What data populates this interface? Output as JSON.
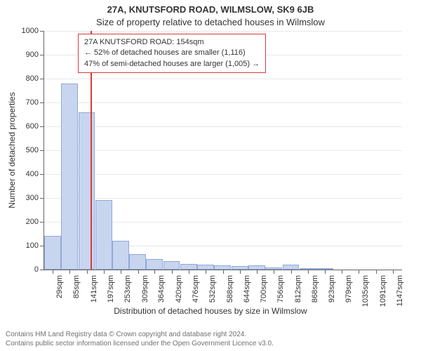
{
  "title": "27A, KNUTSFORD ROAD, WILMSLOW, SK9 6JB",
  "subtitle": "Size of property relative to detached houses in Wilmslow",
  "ylabel": "Number of detached properties",
  "xlabel": "Distribution of detached houses by size in Wilmslow",
  "chart": {
    "type": "histogram",
    "background_color": "#ffffff",
    "grid_color": "#e8e8e8",
    "axis_color": "#666666",
    "bar_fill": "#c8d5ef",
    "bar_border": "#8fa8d8",
    "ylim": [
      0,
      1000
    ],
    "ytick_step": 100,
    "marker": {
      "x_sqm": 154,
      "color": "#d93a3a"
    },
    "annotation": {
      "border_color": "#d93a3a",
      "lines": [
        "27A KNUTSFORD ROAD: 154sqm",
        "← 52% of detached houses are smaller (1,116)",
        "47% of semi-detached houses are larger (1,005) →"
      ]
    },
    "xtick_sqm": [
      29,
      85,
      141,
      197,
      253,
      309,
      364,
      420,
      476,
      532,
      588,
      644,
      700,
      756,
      812,
      868,
      923,
      979,
      1035,
      1091,
      1147
    ],
    "bars": [
      {
        "x_sqm": 29,
        "count": 140
      },
      {
        "x_sqm": 85,
        "count": 780
      },
      {
        "x_sqm": 141,
        "count": 660
      },
      {
        "x_sqm": 197,
        "count": 290
      },
      {
        "x_sqm": 253,
        "count": 120
      },
      {
        "x_sqm": 309,
        "count": 65
      },
      {
        "x_sqm": 364,
        "count": 45
      },
      {
        "x_sqm": 420,
        "count": 35
      },
      {
        "x_sqm": 476,
        "count": 25
      },
      {
        "x_sqm": 532,
        "count": 20
      },
      {
        "x_sqm": 588,
        "count": 18
      },
      {
        "x_sqm": 644,
        "count": 15
      },
      {
        "x_sqm": 700,
        "count": 18
      },
      {
        "x_sqm": 756,
        "count": 8
      },
      {
        "x_sqm": 812,
        "count": 20
      },
      {
        "x_sqm": 868,
        "count": 3
      },
      {
        "x_sqm": 923,
        "count": 2
      },
      {
        "x_sqm": 979,
        "count": 0
      },
      {
        "x_sqm": 1035,
        "count": 0
      },
      {
        "x_sqm": 1091,
        "count": 0
      },
      {
        "x_sqm": 1147,
        "count": 0
      }
    ],
    "label_fontsize": 11,
    "title_fontsize": 13
  },
  "footer": {
    "line1": "Contains HM Land Registry data © Crown copyright and database right 2024.",
    "line2": "Contains public sector information licensed under the Open Government Licence v3.0."
  }
}
